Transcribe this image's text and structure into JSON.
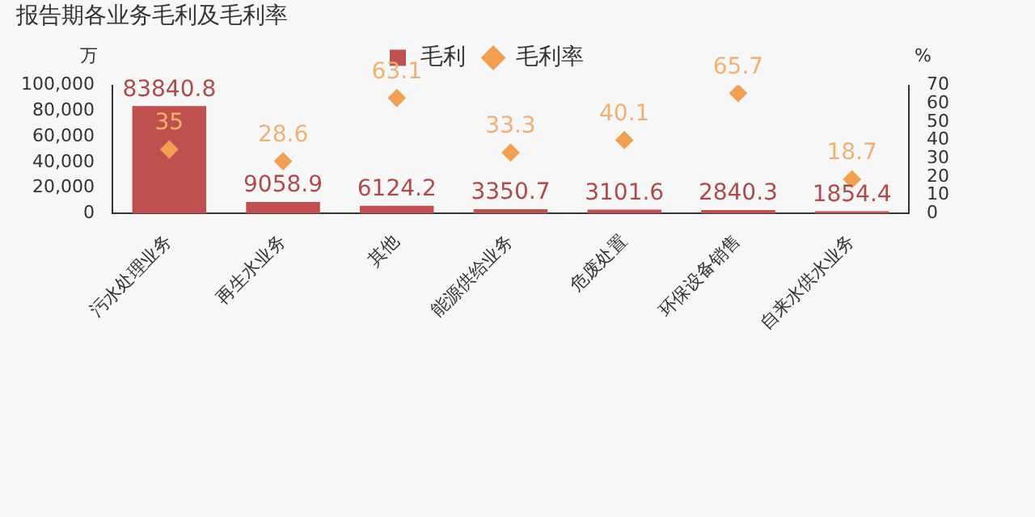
{
  "chart_data": {
    "type": "bar",
    "title": "报告期各业务毛利及毛利率",
    "ylabel": "万",
    "y2label": "%",
    "categories": [
      "污水处理业务",
      "再生水业务",
      "其他",
      "能源供给业务",
      "危废处置",
      "环保设备销售",
      "自来水供水业务"
    ],
    "series": [
      {
        "name": "毛利",
        "color": "#c0504d",
        "values": [
          83840.8,
          9058.9,
          6124.2,
          3350.7,
          3101.6,
          2840.3,
          1854.4
        ]
      },
      {
        "name": "毛利率",
        "type": "scatter",
        "axis": "y2",
        "marker": "diamond",
        "color": "#f0a050",
        "values": [
          35,
          28.6,
          63.1,
          33.3,
          40.1,
          65.7,
          18.7
        ]
      }
    ],
    "ylim": [
      0,
      100000
    ],
    "yticks": [
      0,
      {
        "value": 20000,
        "label": "20,000"
      },
      {
        "value": 40000,
        "label": "40,000"
      },
      {
        "value": 60000,
        "label": "60,000"
      },
      {
        "value": 80000,
        "label": "80,000"
      },
      {
        "value": 100000,
        "label": "100,000"
      }
    ],
    "y2lim": [
      0,
      70
    ],
    "y2ticks": [
      0,
      10,
      20,
      30,
      40,
      50,
      60,
      70
    ],
    "legend": "top",
    "grid": false,
    "data_labels": true
  }
}
